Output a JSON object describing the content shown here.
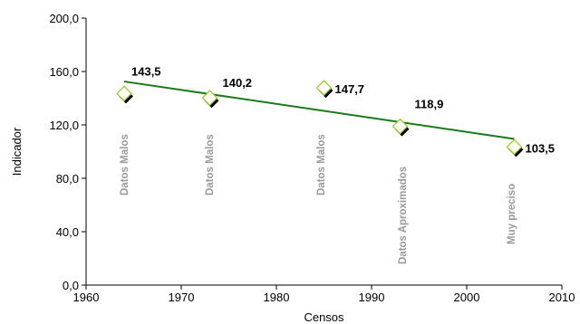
{
  "chart_data": {
    "type": "scatter",
    "title": "",
    "xlabel": "Censos",
    "ylabel": "Indicador",
    "xlim": [
      1960,
      2010
    ],
    "ylim": [
      0,
      200
    ],
    "x_ticks": [
      "1960",
      "1970",
      "1980",
      "1990",
      "2000",
      "2010"
    ],
    "y_ticks": [
      "0,0",
      "40,0",
      "80,0",
      "120,0",
      "160,0",
      "200,0"
    ],
    "grid": false,
    "legend": "none",
    "points": [
      {
        "x": 1964,
        "y": 143.5,
        "label": "143,5",
        "annotation": "Datos Malos"
      },
      {
        "x": 1973,
        "y": 140.2,
        "label": "140,2",
        "annotation": "Datos Malos"
      },
      {
        "x": 1985,
        "y": 147.7,
        "label": "147,7",
        "annotation": "Datos Malos"
      },
      {
        "x": 1993,
        "y": 118.9,
        "label": "118,9",
        "annotation": "Datos Aproximados"
      },
      {
        "x": 2005,
        "y": 103.5,
        "label": "103,5",
        "annotation": "Muy preciso"
      }
    ],
    "trendline": {
      "x": [
        1964,
        2005
      ],
      "y": [
        152.5,
        109.5
      ]
    },
    "colors": {
      "marker_stroke": "#9acd32",
      "marker_fill": "#ffffff",
      "marker_shadow": "#000000",
      "trend": "#1a7a1a",
      "annotation": "#9a9a9a"
    }
  }
}
